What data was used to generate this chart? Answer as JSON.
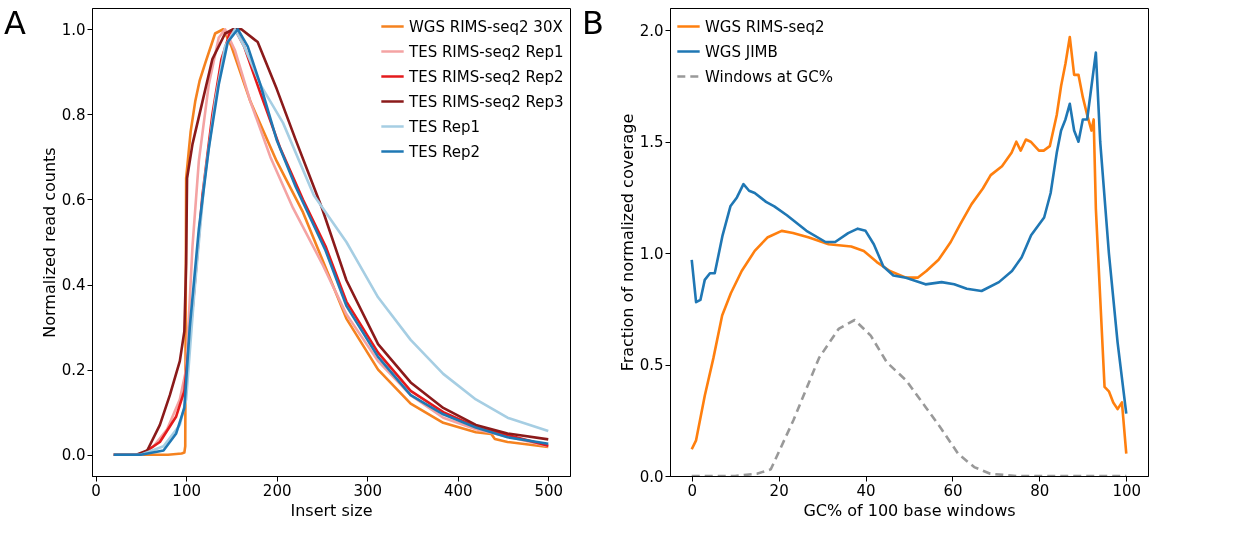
{
  "chart_data": [
    {
      "type": "line",
      "annotations": [
        "A"
      ],
      "xlabel": "Insert size",
      "ylabel": "Normalized read counts",
      "xlim": [
        -4,
        524
      ],
      "xticks": [
        0,
        100,
        200,
        300,
        400,
        500
      ],
      "ylim": [
        -0.05,
        1.05
      ],
      "yticks": [
        {
          "value": 0,
          "label": "0.0"
        },
        0.2,
        0.4,
        0.6,
        0.8,
        {
          "value": 1,
          "label": "1.0"
        }
      ],
      "grid": false,
      "legend": "top right",
      "series": [
        {
          "name": "WGS RIMS-seq2 30X",
          "color": "#f5821f",
          "x": [
            20,
            50,
            80,
            95,
            98,
            99,
            100,
            105,
            110,
            115,
            121,
            132,
            141,
            150,
            171,
            200,
            229,
            254,
            277,
            312,
            348,
            384,
            420,
            437,
            441,
            455,
            500
          ],
          "values": [
            0,
            0,
            0,
            0.003,
            0.005,
            0.02,
            0.65,
            0.76,
            0.83,
            0.88,
            0.92,
            0.99,
            1.0,
            0.96,
            0.83,
            0.69,
            0.57,
            0.44,
            0.32,
            0.2,
            0.12,
            0.075,
            0.053,
            0.049,
            0.037,
            0.03,
            0.018
          ]
        },
        {
          "name": "TES RIMS-seq2 Rep1",
          "color": "#f4a3a3",
          "x": [
            20,
            50,
            64,
            79,
            93,
            100,
            107,
            114,
            125,
            136,
            143,
            154,
            171,
            193,
            218,
            250,
            277,
            312,
            348,
            384,
            420,
            500
          ],
          "values": [
            0,
            0,
            0.02,
            0.06,
            0.13,
            0.2,
            0.49,
            0.69,
            0.87,
            0.98,
            1.0,
            0.95,
            0.83,
            0.7,
            0.58,
            0.45,
            0.33,
            0.22,
            0.14,
            0.087,
            0.06,
            0.02
          ]
        },
        {
          "name": "TES RIMS-seq2 Rep2",
          "color": "#e41a1c",
          "x": [
            20,
            50,
            71,
            89,
            98,
            107,
            118,
            129,
            139,
            148,
            154,
            164,
            182,
            204,
            229,
            254,
            277,
            312,
            348,
            384,
            420,
            500
          ],
          "values": [
            0,
            0,
            0.03,
            0.09,
            0.15,
            0.34,
            0.61,
            0.8,
            0.93,
            0.99,
            1.0,
            0.96,
            0.85,
            0.72,
            0.6,
            0.49,
            0.36,
            0.24,
            0.15,
            0.1,
            0.066,
            0.021
          ]
        },
        {
          "name": "TES RIMS-seq2 Rep3",
          "color": "#8b1a1a",
          "x": [
            20,
            45,
            57,
            71,
            82,
            93,
            98,
            100,
            101,
            107,
            118,
            129,
            143,
            152,
            161,
            179,
            200,
            221,
            250,
            277,
            312,
            348,
            384,
            420,
            455,
            500
          ],
          "values": [
            0,
            0,
            0.01,
            0.07,
            0.14,
            0.22,
            0.29,
            0.45,
            0.65,
            0.73,
            0.83,
            0.93,
            0.99,
            1.0,
            1.0,
            0.97,
            0.86,
            0.74,
            0.58,
            0.41,
            0.26,
            0.17,
            0.11,
            0.07,
            0.05,
            0.036
          ]
        },
        {
          "name": "TES Rep1",
          "color": "#a6cee3",
          "x": [
            20,
            50,
            75,
            93,
            100,
            109,
            120,
            132,
            143,
            154,
            164,
            182,
            207,
            241,
            277,
            312,
            348,
            384,
            420,
            455,
            500
          ],
          "values": [
            0,
            0,
            0.02,
            0.07,
            0.13,
            0.38,
            0.64,
            0.83,
            0.96,
            1.0,
            0.96,
            0.87,
            0.78,
            0.61,
            0.5,
            0.37,
            0.27,
            0.19,
            0.13,
            0.087,
            0.056
          ]
        },
        {
          "name": "TES Rep2",
          "color": "#1f78b4",
          "x": [
            20,
            50,
            75,
            89,
            98,
            104,
            114,
            125,
            136,
            146,
            157,
            168,
            182,
            200,
            221,
            254,
            277,
            312,
            348,
            384,
            420,
            455,
            500
          ],
          "values": [
            0,
            0,
            0.01,
            0.05,
            0.11,
            0.3,
            0.53,
            0.72,
            0.87,
            0.97,
            1.0,
            0.96,
            0.87,
            0.74,
            0.63,
            0.48,
            0.35,
            0.23,
            0.14,
            0.095,
            0.064,
            0.041,
            0.026
          ]
        }
      ]
    },
    {
      "type": "line",
      "annotations": [
        "B"
      ],
      "xlabel": "GC% of 100 base windows",
      "ylabel": "Fraction of normalized coverage",
      "xlim": [
        -5,
        105
      ],
      "xticks": [
        0,
        20,
        40,
        60,
        80,
        100
      ],
      "ylim": [
        0,
        2.1
      ],
      "yticks": [
        {
          "value": 0,
          "label": "0.0"
        },
        0.5,
        {
          "value": 1,
          "label": "1.0"
        },
        1.5,
        {
          "value": 2,
          "label": "2.0"
        }
      ],
      "grid": false,
      "legend": "top left",
      "series": [
        {
          "name": "WGS RIMS-seq2",
          "color": "#ff7f0e",
          "x": [
            0,
            1,
            3,
            5,
            7,
            9,
            11.5,
            14.5,
            17.4,
            20.7,
            23.3,
            27,
            31.5,
            36.7,
            39.6,
            42.6,
            45.6,
            49.3,
            52,
            54,
            56.8,
            59.6,
            61.8,
            64.4,
            67,
            68.8,
            71.4,
            73.6,
            74.7,
            75.7,
            76.9,
            78,
            79.9,
            81,
            82.4,
            84,
            85,
            86,
            87,
            88,
            89,
            90,
            91,
            92,
            92.5,
            93,
            94,
            95,
            96,
            97,
            98,
            99,
            100
          ],
          "values": [
            0.12,
            0.16,
            0.36,
            0.53,
            0.72,
            0.82,
            0.92,
            1.01,
            1.07,
            1.1,
            1.09,
            1.07,
            1.04,
            1.03,
            1.01,
            0.96,
            0.92,
            0.89,
            0.89,
            0.92,
            0.97,
            1.05,
            1.13,
            1.22,
            1.29,
            1.35,
            1.39,
            1.45,
            1.5,
            1.46,
            1.51,
            1.5,
            1.46,
            1.46,
            1.48,
            1.62,
            1.75,
            1.85,
            1.97,
            1.8,
            1.8,
            1.7,
            1.62,
            1.55,
            1.6,
            1.2,
            0.8,
            0.4,
            0.38,
            0.33,
            0.3,
            0.33,
            0.1
          ]
        },
        {
          "name": "WGS JIMB",
          "color": "#1f77b4",
          "x": [
            0,
            1,
            2,
            3,
            4.2,
            5.3,
            7.1,
            8.9,
            10.4,
            11.9,
            13.2,
            14.5,
            17.1,
            19,
            21.9,
            26.4,
            30.8,
            33,
            36,
            38.2,
            40,
            41.9,
            44.1,
            46.4,
            49.3,
            53.8,
            57.5,
            60.4,
            63.3,
            66.7,
            70.7,
            73.7,
            75.9,
            78.1,
            81.1,
            82.6,
            84,
            85,
            86,
            87,
            88,
            89,
            90,
            91,
            92,
            93,
            94,
            96,
            98,
            100
          ],
          "values": [
            0.97,
            0.78,
            0.79,
            0.88,
            0.91,
            0.91,
            1.08,
            1.21,
            1.25,
            1.31,
            1.28,
            1.27,
            1.23,
            1.21,
            1.17,
            1.1,
            1.05,
            1.05,
            1.09,
            1.11,
            1.1,
            1.04,
            0.94,
            0.9,
            0.89,
            0.86,
            0.87,
            0.86,
            0.84,
            0.83,
            0.87,
            0.92,
            0.98,
            1.08,
            1.16,
            1.27,
            1.45,
            1.55,
            1.6,
            1.67,
            1.55,
            1.5,
            1.6,
            1.6,
            1.75,
            1.9,
            1.5,
            1.0,
            0.6,
            0.28
          ]
        },
        {
          "name": "Windows at GC%",
          "color": "#999999",
          "line_style": "dashed",
          "x": [
            0,
            10,
            15,
            18.2,
            23.4,
            29.3,
            33.8,
            37.5,
            41.2,
            44.9,
            49.3,
            53.8,
            57.5,
            61.3,
            65,
            68.7,
            74.7,
            85,
            100
          ],
          "values": [
            0,
            0,
            0.01,
            0.03,
            0.25,
            0.53,
            0.66,
            0.7,
            0.63,
            0.51,
            0.43,
            0.31,
            0.21,
            0.1,
            0.04,
            0.01,
            0,
            0,
            0
          ]
        }
      ]
    }
  ]
}
